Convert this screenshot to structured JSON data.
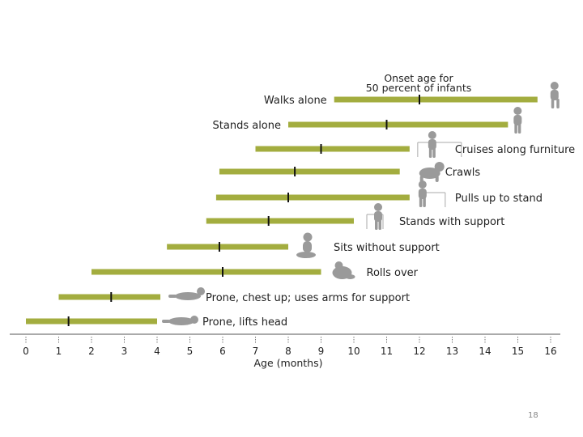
{
  "chart_data": {
    "type": "bar",
    "legend": {
      "lines": [
        "Onset age for",
        "50 percent of infants"
      ],
      "placement": "top-right"
    },
    "xlabel": "Age (months)",
    "xlim": [
      0,
      16
    ],
    "ticks": [
      "0",
      "1",
      "2",
      "3",
      "4",
      "5",
      "6",
      "7",
      "8",
      "9",
      "10",
      "11",
      "12",
      "13",
      "14",
      "15",
      "16"
    ],
    "bar_color": "#a3ad3f",
    "series": [
      {
        "label": "Walks alone",
        "start": 9.4,
        "end": 15.6,
        "median": 12.0,
        "label_side": "left"
      },
      {
        "label": "Stands alone",
        "start": 8.0,
        "end": 14.7,
        "median": 11.0,
        "label_side": "left"
      },
      {
        "label": "Cruises along furniture",
        "start": 7.0,
        "end": 11.7,
        "median": 9.0,
        "label_side": "right"
      },
      {
        "label": "Crawls",
        "start": 5.9,
        "end": 11.4,
        "median": 8.2,
        "label_side": "right"
      },
      {
        "label": "Pulls up to stand",
        "start": 5.8,
        "end": 11.7,
        "median": 8.0,
        "label_side": "right"
      },
      {
        "label": "Stands with support",
        "start": 5.5,
        "end": 10.0,
        "median": 7.4,
        "label_side": "right"
      },
      {
        "label": "Sits without support",
        "start": 4.3,
        "end": 8.0,
        "median": 5.9,
        "label_side": "right"
      },
      {
        "label": "Rolls over",
        "start": 2.0,
        "end": 9.0,
        "median": 6.0,
        "label_side": "right"
      },
      {
        "label": "Prone, chest up; uses arms for support",
        "start": 1.0,
        "end": 4.1,
        "median": 2.6,
        "label_side": "right"
      },
      {
        "label": "Prone, lifts head",
        "start": 0.0,
        "end": 4.0,
        "median": 1.3,
        "label_side": "right"
      }
    ]
  },
  "page_number": "18",
  "icons": [
    "walking-baby-icon",
    "standing-baby-icon",
    "cruising-baby-icon",
    "crawling-baby-icon",
    "pulling-up-baby-icon",
    "supported-standing-baby-icon",
    "sitting-baby-icon",
    "rolling-baby-icon",
    "prone-chest-up-baby-icon",
    "prone-baby-icon"
  ]
}
